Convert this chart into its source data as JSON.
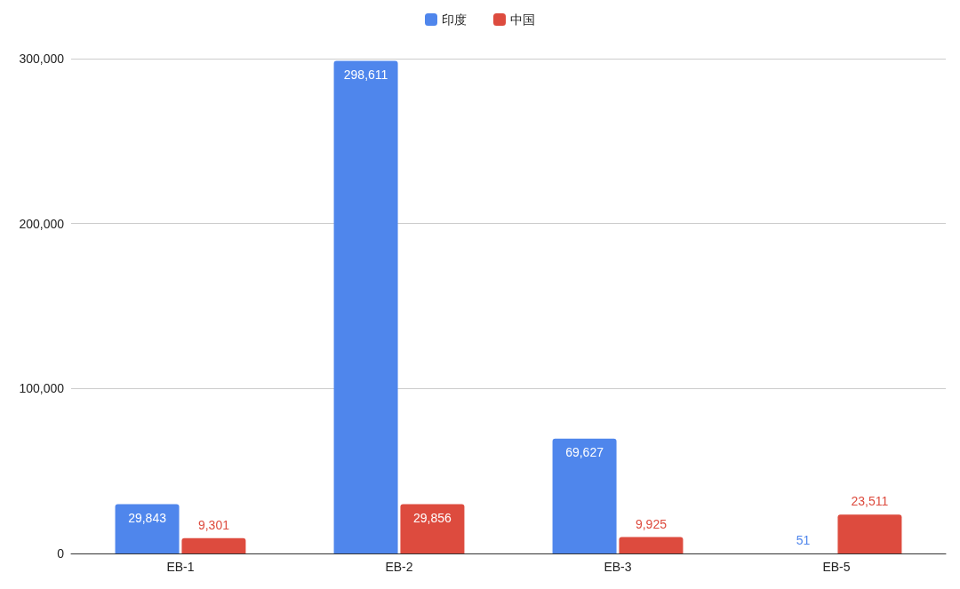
{
  "chart_data": {
    "type": "bar",
    "categories": [
      "EB-1",
      "EB-2",
      "EB-3",
      "EB-5"
    ],
    "series": [
      {
        "name": "印度",
        "color": "#4f86ec",
        "values": [
          29843,
          298611,
          69627,
          51
        ],
        "value_labels": [
          "29,843",
          "298,611",
          "69,627",
          "51"
        ]
      },
      {
        "name": "中国",
        "color": "#dd4b3e",
        "values": [
          9301,
          29856,
          9925,
          23511
        ],
        "value_labels": [
          "9,301",
          "29,856",
          "9,925",
          "23,511"
        ]
      }
    ],
    "ylim": [
      0,
      300000
    ],
    "yticks": [
      {
        "value": 0,
        "label": "0"
      },
      {
        "value": 100000,
        "label": "100,000"
      },
      {
        "value": 200000,
        "label": "200,000"
      },
      {
        "value": 300000,
        "label": "300,000"
      }
    ],
    "grid": "y",
    "legend": "top"
  }
}
